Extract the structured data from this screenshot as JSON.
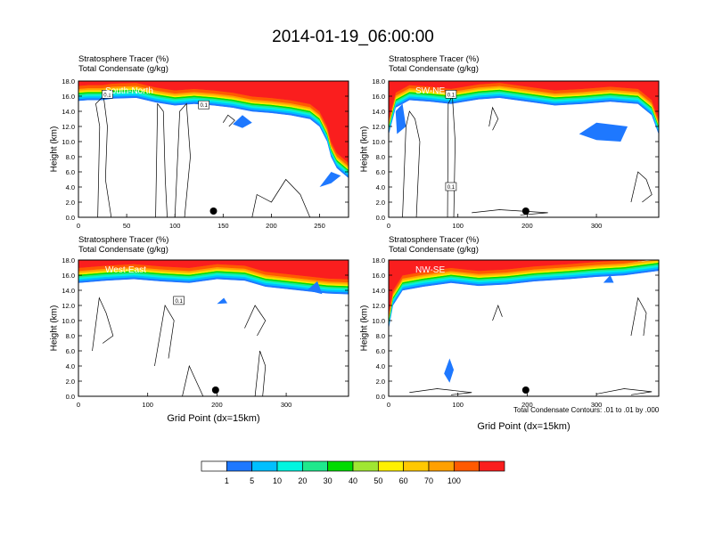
{
  "title": "2014-01-19_06:00:00",
  "field_labels": {
    "tracer": "Stratosphere Tracer   (%)",
    "condensate": "Total Condensate   (g/kg)"
  },
  "axis_labels": {
    "y": "Height (km)",
    "x": "Grid Point (dx=15km)"
  },
  "contour_note": "Total Condensate Contours: .01 to .01 by .000",
  "colorbar": {
    "labels": [
      "1",
      "5",
      "10",
      "20",
      "30",
      "40",
      "50",
      "60",
      "70",
      "100"
    ],
    "colors": [
      "#ffffff",
      "#1e78ff",
      "#00bfff",
      "#00f5e0",
      "#1fe88c",
      "#00dc00",
      "#a0e632",
      "#fff000",
      "#ffc800",
      "#ffa000",
      "#ff5a00",
      "#fa1e1e"
    ]
  },
  "chart_data": [
    {
      "type": "heatmap",
      "panel_label": "South-North",
      "xlim": [
        0,
        280
      ],
      "ylim": [
        0,
        18
      ],
      "xticks": [
        0,
        50,
        100,
        150,
        200,
        250
      ],
      "yticks": [
        "0.0",
        "2.0",
        "4.0",
        "6.0",
        "8.0",
        "10.0",
        "12.0",
        "14.0",
        "16.0",
        "18.0"
      ],
      "tropopause_km": [
        [
          0,
          15.4
        ],
        [
          10,
          15.5
        ],
        [
          25,
          15.5
        ],
        [
          35,
          15.7
        ],
        [
          60,
          15.8
        ],
        [
          80,
          15.2
        ],
        [
          100,
          14.8
        ],
        [
          120,
          15.0
        ],
        [
          140,
          14.8
        ],
        [
          160,
          14.5
        ],
        [
          180,
          14.0
        ],
        [
          200,
          13.8
        ],
        [
          220,
          13.5
        ],
        [
          240,
          13.0
        ],
        [
          250,
          12.0
        ],
        [
          258,
          10.0
        ],
        [
          262,
          8.0
        ],
        [
          268,
          6.5
        ],
        [
          280,
          5.2
        ]
      ],
      "contour_labels": [
        {
          "x": 30,
          "y": 16.2,
          "text": "0.1"
        },
        {
          "x": 130,
          "y": 14.8,
          "text": "0.1"
        }
      ],
      "marker_x": 140
    },
    {
      "type": "heatmap",
      "panel_label": "SW-NE",
      "xlim": [
        0,
        390
      ],
      "ylim": [
        0,
        18
      ],
      "xticks": [
        0,
        100,
        200,
        300
      ],
      "yticks": [
        "0.0",
        "2.0",
        "4.0",
        "6.0",
        "8.0",
        "10.0",
        "12.0",
        "14.0",
        "16.0",
        "18.0"
      ],
      "tropopause_km": [
        [
          0,
          11.0
        ],
        [
          10,
          14.5
        ],
        [
          30,
          15.5
        ],
        [
          60,
          15.3
        ],
        [
          90,
          15.0
        ],
        [
          130,
          15.6
        ],
        [
          160,
          15.8
        ],
        [
          200,
          15.3
        ],
        [
          240,
          14.8
        ],
        [
          280,
          15.0
        ],
        [
          320,
          15.3
        ],
        [
          360,
          15.0
        ],
        [
          380,
          13.5
        ],
        [
          390,
          11.0
        ]
      ],
      "contour_labels": [
        {
          "x": 90,
          "y": 16.2,
          "text": "0.1"
        },
        {
          "x": 90,
          "y": 4.0,
          "text": "0.1"
        }
      ],
      "marker_x": 198
    },
    {
      "type": "heatmap",
      "panel_label": "West-East",
      "xlim": [
        0,
        390
      ],
      "ylim": [
        0,
        18
      ],
      "xticks": [
        0,
        100,
        200,
        300
      ],
      "yticks": [
        "0.0",
        "2.0",
        "4.0",
        "6.0",
        "8.0",
        "10.0",
        "12.0",
        "14.0",
        "16.0",
        "18.0"
      ],
      "tropopause_km": [
        [
          0,
          15.0
        ],
        [
          40,
          15.3
        ],
        [
          80,
          15.5
        ],
        [
          120,
          15.2
        ],
        [
          160,
          15.0
        ],
        [
          200,
          15.5
        ],
        [
          240,
          15.3
        ],
        [
          270,
          14.5
        ],
        [
          300,
          14.2
        ],
        [
          340,
          13.8
        ],
        [
          360,
          13.6
        ],
        [
          390,
          13.5
        ]
      ],
      "contour_labels": [
        {
          "x": 145,
          "y": 12.6,
          "text": "0.1"
        }
      ],
      "marker_x": 198
    },
    {
      "type": "heatmap",
      "panel_label": "NW-SE",
      "xlim": [
        0,
        390
      ],
      "ylim": [
        0,
        18
      ],
      "xticks": [
        0,
        100,
        200,
        300
      ],
      "yticks": [
        "0.0",
        "2.0",
        "4.0",
        "6.0",
        "8.0",
        "10.0",
        "12.0",
        "14.0",
        "16.0",
        "18.0"
      ],
      "tropopause_km": [
        [
          0,
          9.0
        ],
        [
          6,
          12.0
        ],
        [
          20,
          14.0
        ],
        [
          50,
          14.5
        ],
        [
          90,
          15.0
        ],
        [
          130,
          14.6
        ],
        [
          170,
          14.8
        ],
        [
          210,
          15.2
        ],
        [
          260,
          15.5
        ],
        [
          300,
          15.8
        ],
        [
          340,
          16.0
        ],
        [
          390,
          16.6
        ]
      ],
      "contour_labels": [],
      "marker_x": 198
    }
  ]
}
